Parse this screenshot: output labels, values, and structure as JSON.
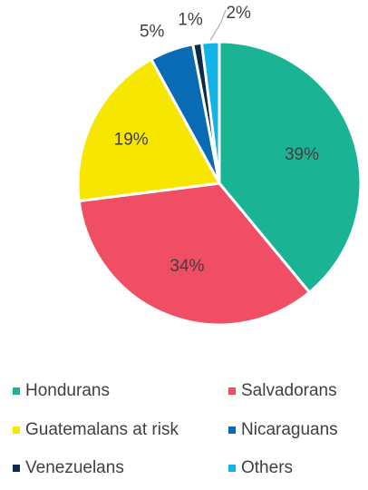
{
  "chart_data": {
    "type": "pie",
    "title": "",
    "categories": [
      "Hondurans",
      "Salvadorans",
      "Guatemalans at risk",
      "Nicaraguans",
      "Venezuelans",
      "Others"
    ],
    "values": [
      39,
      34,
      19,
      5,
      1,
      2
    ],
    "labels": [
      "39%",
      "34%",
      "19%",
      "5%",
      "1%",
      "2%"
    ],
    "colors": [
      "#1ab394",
      "#f04e64",
      "#f7e600",
      "#0a6bb5",
      "#0d2a4d",
      "#10b4e6"
    ],
    "legend_position": "bottom",
    "start_angle": "12 o'clock, clockwise"
  }
}
